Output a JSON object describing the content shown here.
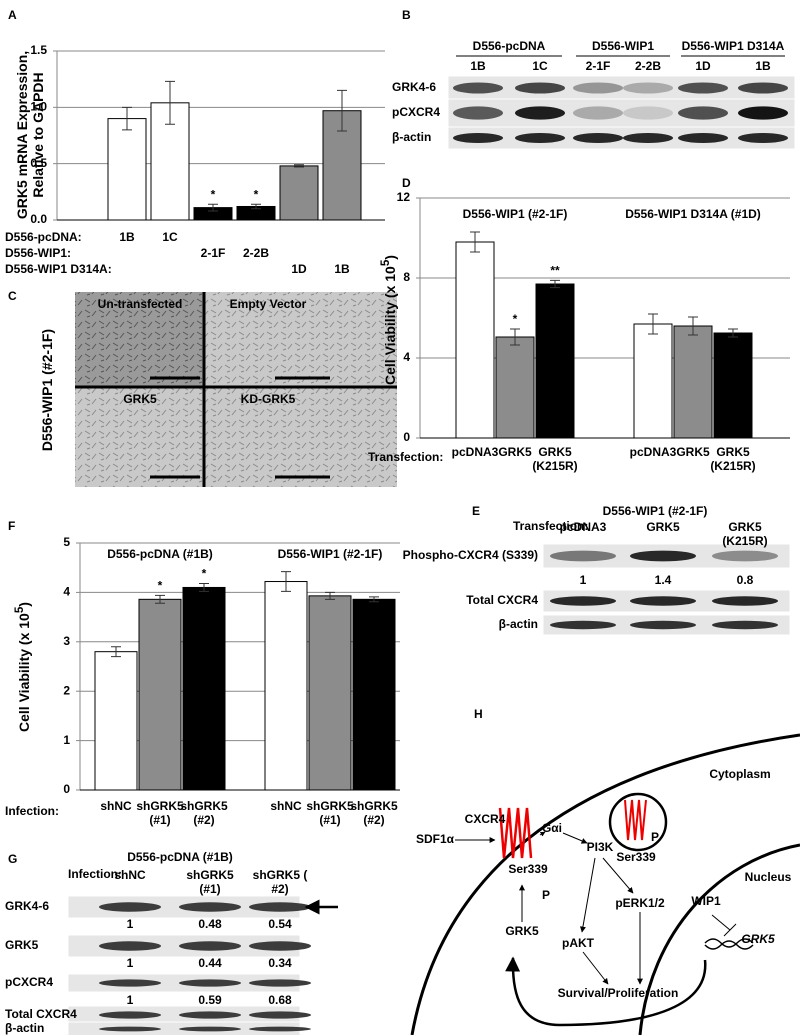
{
  "chart_data": [
    {
      "type": "bar",
      "panel": "A",
      "y_label": "GRK5 mRNA Expression, Relative to GAPDH",
      "groups": [
        {
          "label": "D556-pcDNA:",
          "categories": [
            "1B",
            "1C"
          ],
          "values": [
            0.9,
            1.04
          ],
          "errors": [
            0.1,
            0.19
          ],
          "color": "#ffffff",
          "annotations": [
            null,
            null
          ]
        },
        {
          "label": "D556-WIP1:",
          "categories": [
            "2-1F",
            "2-2B"
          ],
          "values": [
            0.11,
            0.12
          ],
          "errors": [
            0.03,
            0.02
          ],
          "color": "#000000",
          "annotations": [
            "*",
            "*"
          ]
        },
        {
          "label": "D556-WIP1 D314A:",
          "categories": [
            "1D",
            "1B"
          ],
          "values": [
            0.48,
            0.97
          ],
          "errors": [
            0.01,
            0.18
          ],
          "color": "#8c8c8c",
          "annotations": [
            null,
            null
          ]
        }
      ],
      "ylim": [
        0,
        1.5
      ],
      "yticks": [
        {
          "value": 0,
          "label": "0.0"
        },
        {
          "value": 0.5,
          "label": "0.5"
        },
        {
          "value": 1,
          "label": "1.0"
        },
        {
          "value": 1.5,
          "label": "1.5"
        }
      ],
      "grid": true
    },
    {
      "type": "bar",
      "panel": "D",
      "y_label": {
        "text": "Cell Viability (x 10",
        "exponent": "5",
        "close": ")"
      },
      "x_label": "Transfection:",
      "categories": [
        "D556-WIP1 (#2-1F)",
        "D556-WIP1 D314A (#1D)"
      ],
      "series": [
        {
          "name": "pcDNA3",
          "color": "#ffffff",
          "values": [
            9.8,
            5.7
          ],
          "errors": [
            0.5,
            0.5
          ],
          "annotations": [
            null,
            null
          ]
        },
        {
          "name": "GRK5",
          "color": "#8c8c8c",
          "values": [
            5.05,
            5.6
          ],
          "errors": [
            0.4,
            0.45
          ],
          "annotations": [
            "*",
            null
          ]
        },
        {
          "name": "GRK5 (K215R)",
          "color": "#000000",
          "values": [
            7.7,
            5.25
          ],
          "errors": [
            0.18,
            0.2
          ],
          "annotations": [
            "**",
            null
          ]
        }
      ],
      "ylim": [
        0,
        12
      ],
      "yticks": [
        0,
        4,
        8,
        12
      ],
      "grid": true
    },
    {
      "type": "bar",
      "panel": "F",
      "y_label": {
        "text": "Cell Viability (x 10",
        "exponent": "5",
        "close": ")"
      },
      "x_label": "Infection:",
      "categories": [
        "D556-pcDNA (#1B)",
        "D556-WIP1 (#2-1F)"
      ],
      "series": [
        {
          "name": "shNC",
          "color": "#ffffff",
          "values": [
            2.8,
            4.22
          ],
          "errors": [
            0.1,
            0.2
          ],
          "annotations": [
            null,
            null
          ]
        },
        {
          "name": "shGRK5 (#1)",
          "color": "#8c8c8c",
          "values": [
            3.86,
            3.93
          ],
          "errors": [
            0.08,
            0.07
          ],
          "annotations": [
            "*",
            null
          ]
        },
        {
          "name": "shGRK5 (#2)",
          "color": "#000000",
          "values": [
            4.1,
            3.86
          ],
          "errors": [
            0.08,
            0.05
          ],
          "annotations": [
            "*",
            null
          ]
        }
      ],
      "ylim": [
        0,
        5
      ],
      "yticks": [
        0,
        1,
        2,
        3,
        4,
        5
      ],
      "grid": true
    }
  ],
  "panel_B": {
    "label": "B",
    "groups": [
      {
        "name": "D556-pcDNA",
        "lanes": [
          "1B",
          "1C"
        ]
      },
      {
        "name": "D556-WIP1",
        "lanes": [
          "2-1F",
          "2-2B"
        ]
      },
      {
        "name": "D556-WIP1 D314A",
        "lanes": [
          "1D",
          "1B"
        ]
      }
    ],
    "rows": [
      "GRK4-6",
      "pCXCR4",
      "β-actin"
    ]
  },
  "panel_C": {
    "label": "C",
    "side_label": "D556-WIP1 (#2-1F)",
    "quadrants": [
      "Un-transfected",
      "Empty Vector",
      "GRK5",
      "KD-GRK5"
    ]
  },
  "panel_E": {
    "label": "E",
    "title": "D556-WIP1 (#2-1F)",
    "row_header": "Transfection:",
    "lanes": [
      "pcDNA3",
      "GRK5",
      "GRK5 (K215R)"
    ],
    "rows": [
      "Phospho-CXCR4 (S339)",
      "Total CXCR4",
      "β-actin"
    ],
    "quantification": [
      1,
      1.4,
      0.8
    ]
  },
  "panel_G": {
    "label": "G",
    "title": "D556-pcDNA (#1B)",
    "row_header": "Infection:",
    "lanes": [
      "shNC",
      "shGRK5 (#1)",
      "shGRK5 ( #2)"
    ],
    "rows": [
      {
        "name": "GRK4-6",
        "quantification": [
          1,
          0.48,
          0.54
        ]
      },
      {
        "name": "GRK5",
        "quantification": [
          1,
          0.44,
          0.34
        ]
      },
      {
        "name": "pCXCR4",
        "quantification": [
          1,
          0.59,
          0.68
        ]
      },
      {
        "name": "Total CXCR4"
      },
      {
        "name": "β-actin"
      }
    ]
  },
  "panel_H": {
    "label": "H",
    "cytoplasm": "Cytoplasm",
    "nucleus": "Nucleus",
    "receptor": "CXCR4",
    "ligand": "SDF1α",
    "g_protein": "Gαi",
    "pi3k": "PI3K",
    "site": "Ser339",
    "site_vesicle": "Ser339",
    "phospho": "P",
    "phospho_vesicle": "P",
    "kinase": "GRK5",
    "pakt": "pAKT",
    "perk": "pERK1/2",
    "outcome": "Survival/Proliferation",
    "wip1": "WIP1",
    "gene": "GRK5"
  }
}
